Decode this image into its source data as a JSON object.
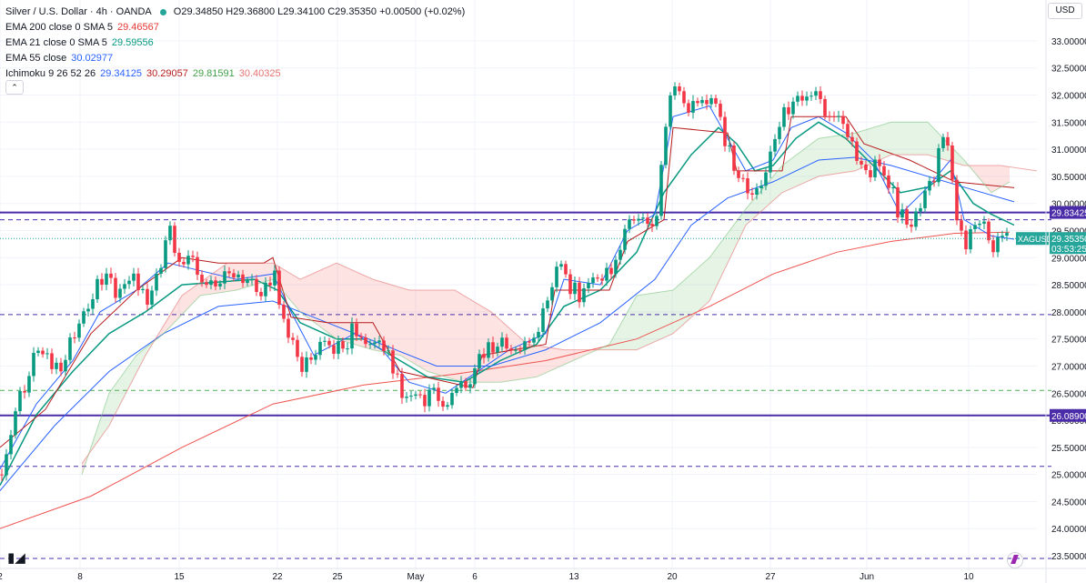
{
  "header": {
    "symbol_title": "Silver / U.S. Dollar · 4h · OANDA",
    "ohlc": "O29.34850 H29.36800 L29.34100 C29.35350 +0.00500 (+0.02%)",
    "currency": "USD",
    "indicators": [
      {
        "label": "EMA 200 close 0 SMA 5",
        "value": "29.46567",
        "color": "#e53935"
      },
      {
        "label": "EMA 21 close 0 SMA 5",
        "value": "29.59556",
        "color": "#089981"
      },
      {
        "label": "EMA 55 close",
        "value": "30.02977",
        "color": "#2962ff"
      },
      {
        "label": "Ichimoku 9 26 52 26",
        "values": [
          "29.34125",
          "30.29057",
          "29.81591",
          "30.40325"
        ],
        "colors": [
          "#2962ff",
          "#b71c1c",
          "#43a047",
          "#e57373"
        ]
      }
    ]
  },
  "chart_data": {
    "type": "line",
    "ylim": [
      23.4,
      33.2
    ],
    "y_ticks": [
      "33.00000",
      "32.50000",
      "32.00000",
      "31.50000",
      "31.00000",
      "30.50000",
      "30.00000",
      "29.50000",
      "29.00000",
      "28.50000",
      "28.00000",
      "27.50000",
      "27.00000",
      "26.50000",
      "26.00000",
      "25.50000",
      "25.00000",
      "24.50000",
      "24.00000",
      "23.50000"
    ],
    "x_ticks": [
      {
        "label": "2",
        "t": 0
      },
      {
        "label": "8",
        "t": 88
      },
      {
        "label": "15",
        "t": 197
      },
      {
        "label": "22",
        "t": 305
      },
      {
        "label": "25",
        "t": 371
      },
      {
        "label": "May",
        "t": 457
      },
      {
        "label": "6",
        "t": 522
      },
      {
        "label": "13",
        "t": 631
      },
      {
        "label": "20",
        "t": 739
      },
      {
        "label": "27",
        "t": 847
      },
      {
        "label": "Jun",
        "t": 953
      },
      {
        "label": "10",
        "t": 1065
      }
    ],
    "x_range": [
      0,
      1140
    ],
    "h_levels": [
      {
        "value": 29.83425,
        "label": "29.83425",
        "style": "solid",
        "color": "#4a2ca8"
      },
      {
        "value": 26.089,
        "label": "26.08900",
        "style": "solid",
        "color": "#4a2ca8"
      },
      {
        "value": 29.7,
        "style": "dashed",
        "color": "#4a2ca8"
      },
      {
        "value": 27.95,
        "style": "dashed",
        "color": "#4a2ca8"
      },
      {
        "value": 25.15,
        "style": "dashed",
        "color": "#4a2ca8"
      },
      {
        "value": 23.45,
        "style": "dashed",
        "color": "#4a2ca8"
      },
      {
        "value": 26.55,
        "style": "dashed",
        "color": "#4caf50"
      }
    ],
    "last_price": {
      "value": 29.3535,
      "label": "29.35350",
      "timer": "03:53:25",
      "symbol": "XAGUSD",
      "color": "#26a69a"
    },
    "close_path": [
      [
        0,
        25.0
      ],
      [
        20,
        26.4
      ],
      [
        42,
        27.3
      ],
      [
        65,
        26.9
      ],
      [
        80,
        27.6
      ],
      [
        95,
        28.1
      ],
      [
        110,
        28.7
      ],
      [
        130,
        28.3
      ],
      [
        150,
        28.6
      ],
      [
        165,
        28.2
      ],
      [
        178,
        28.9
      ],
      [
        186,
        29.6
      ],
      [
        195,
        28.8
      ],
      [
        205,
        28.9
      ],
      [
        215,
        28.9
      ],
      [
        225,
        28.5
      ],
      [
        240,
        28.5
      ],
      [
        255,
        28.7
      ],
      [
        270,
        28.6
      ],
      [
        290,
        28.3
      ],
      [
        300,
        28.8
      ],
      [
        308,
        28.1
      ],
      [
        320,
        27.5
      ],
      [
        332,
        26.8
      ],
      [
        345,
        27.3
      ],
      [
        360,
        27.4
      ],
      [
        375,
        27.3
      ],
      [
        390,
        27.7
      ],
      [
        405,
        27.3
      ],
      [
        420,
        27.4
      ],
      [
        435,
        26.9
      ],
      [
        448,
        26.3
      ],
      [
        460,
        26.5
      ],
      [
        470,
        26.4
      ],
      [
        480,
        26.6
      ],
      [
        490,
        26.2
      ],
      [
        500,
        26.6
      ],
      [
        512,
        26.6
      ],
      [
        522,
        27.0
      ],
      [
        535,
        27.4
      ],
      [
        550,
        27.4
      ],
      [
        565,
        27.3
      ],
      [
        580,
        27.4
      ],
      [
        595,
        27.8
      ],
      [
        608,
        28.6
      ],
      [
        618,
        28.9
      ],
      [
        628,
        28.4
      ],
      [
        640,
        28.3
      ],
      [
        655,
        28.6
      ],
      [
        668,
        28.7
      ],
      [
        680,
        29.1
      ],
      [
        690,
        29.8
      ],
      [
        700,
        29.6
      ],
      [
        712,
        29.7
      ],
      [
        722,
        29.8
      ],
      [
        730,
        31.2
      ],
      [
        738,
        32.1
      ],
      [
        748,
        32.1
      ],
      [
        758,
        31.6
      ],
      [
        768,
        31.9
      ],
      [
        780,
        32.0
      ],
      [
        790,
        31.8
      ],
      [
        798,
        31.1
      ],
      [
        808,
        30.6
      ],
      [
        818,
        30.4
      ],
      [
        828,
        30.3
      ],
      [
        838,
        30.5
      ],
      [
        850,
        30.9
      ],
      [
        860,
        31.8
      ],
      [
        872,
        31.8
      ],
      [
        885,
        32.1
      ],
      [
        898,
        32.0
      ],
      [
        910,
        31.5
      ],
      [
        922,
        31.5
      ],
      [
        935,
        31.1
      ],
      [
        945,
        30.7
      ],
      [
        955,
        30.5
      ],
      [
        965,
        30.9
      ],
      [
        978,
        30.4
      ],
      [
        988,
        29.8
      ],
      [
        998,
        29.6
      ],
      [
        1008,
        29.9
      ],
      [
        1018,
        30.2
      ],
      [
        1028,
        30.5
      ],
      [
        1035,
        31.3
      ],
      [
        1045,
        30.8
      ],
      [
        1052,
        29.6
      ],
      [
        1060,
        29.2
      ],
      [
        1070,
        29.6
      ],
      [
        1080,
        29.6
      ],
      [
        1090,
        29.2
      ],
      [
        1100,
        29.3
      ],
      [
        1110,
        29.35
      ]
    ],
    "series": [
      {
        "name": "EMA 200",
        "color": "#ef5350",
        "points": [
          [
            0,
            24.0
          ],
          [
            100,
            24.6
          ],
          [
            200,
            25.5
          ],
          [
            300,
            26.3
          ],
          [
            400,
            26.65
          ],
          [
            500,
            26.85
          ],
          [
            600,
            27.1
          ],
          [
            700,
            27.5
          ],
          [
            780,
            28.1
          ],
          [
            850,
            28.7
          ],
          [
            920,
            29.1
          ],
          [
            980,
            29.3
          ],
          [
            1050,
            29.45
          ],
          [
            1110,
            29.47
          ]
        ]
      },
      {
        "name": "EMA 21",
        "color": "#089981",
        "points": [
          [
            0,
            24.8
          ],
          [
            40,
            26.1
          ],
          [
            80,
            26.9
          ],
          [
            120,
            27.6
          ],
          [
            160,
            28.0
          ],
          [
            200,
            28.5
          ],
          [
            240,
            28.55
          ],
          [
            280,
            28.6
          ],
          [
            305,
            28.4
          ],
          [
            330,
            27.8
          ],
          [
            370,
            27.5
          ],
          [
            400,
            27.5
          ],
          [
            430,
            27.2
          ],
          [
            470,
            26.8
          ],
          [
            510,
            26.7
          ],
          [
            550,
            27.1
          ],
          [
            590,
            27.4
          ],
          [
            620,
            28.1
          ],
          [
            660,
            28.4
          ],
          [
            700,
            29.1
          ],
          [
            730,
            30.2
          ],
          [
            760,
            30.9
          ],
          [
            790,
            31.4
          ],
          [
            810,
            31.1
          ],
          [
            830,
            30.6
          ],
          [
            850,
            30.7
          ],
          [
            875,
            31.2
          ],
          [
            900,
            31.5
          ],
          [
            930,
            31.2
          ],
          [
            960,
            30.7
          ],
          [
            990,
            30.2
          ],
          [
            1020,
            30.3
          ],
          [
            1045,
            30.6
          ],
          [
            1070,
            30.0
          ],
          [
            1090,
            29.8
          ],
          [
            1115,
            29.6
          ]
        ]
      },
      {
        "name": "EMA 55",
        "color": "#2962ff",
        "points": [
          [
            0,
            24.7
          ],
          [
            60,
            25.9
          ],
          [
            120,
            26.9
          ],
          [
            180,
            27.6
          ],
          [
            240,
            28.1
          ],
          [
            300,
            28.2
          ],
          [
            360,
            27.8
          ],
          [
            420,
            27.4
          ],
          [
            480,
            27.0
          ],
          [
            540,
            27.0
          ],
          [
            600,
            27.3
          ],
          [
            660,
            27.8
          ],
          [
            720,
            28.6
          ],
          [
            760,
            29.6
          ],
          [
            800,
            30.1
          ],
          [
            850,
            30.4
          ],
          [
            900,
            30.8
          ],
          [
            940,
            30.85
          ],
          [
            980,
            30.7
          ],
          [
            1020,
            30.5
          ],
          [
            1060,
            30.3
          ],
          [
            1115,
            30.03
          ]
        ]
      },
      {
        "name": "Ichimoku Tenkan",
        "color": "#2962ff",
        "points": [
          [
            0,
            25.1
          ],
          [
            40,
            26.3
          ],
          [
            80,
            27.1
          ],
          [
            110,
            28.0
          ],
          [
            150,
            28.4
          ],
          [
            185,
            28.9
          ],
          [
            210,
            28.8
          ],
          [
            260,
            28.6
          ],
          [
            300,
            28.7
          ],
          [
            320,
            28.0
          ],
          [
            345,
            27.2
          ],
          [
            390,
            27.6
          ],
          [
            420,
            27.3
          ],
          [
            450,
            26.7
          ],
          [
            490,
            26.5
          ],
          [
            525,
            26.9
          ],
          [
            560,
            27.3
          ],
          [
            600,
            27.6
          ],
          [
            620,
            28.6
          ],
          [
            660,
            28.5
          ],
          [
            690,
            29.5
          ],
          [
            720,
            29.8
          ],
          [
            740,
            31.6
          ],
          [
            780,
            31.8
          ],
          [
            800,
            31.2
          ],
          [
            820,
            30.6
          ],
          [
            850,
            30.8
          ],
          [
            870,
            31.4
          ],
          [
            900,
            31.6
          ],
          [
            930,
            31.3
          ],
          [
            960,
            30.8
          ],
          [
            990,
            29.8
          ],
          [
            1020,
            30.3
          ],
          [
            1045,
            30.8
          ],
          [
            1060,
            29.7
          ],
          [
            1090,
            29.4
          ],
          [
            1115,
            29.34
          ]
        ]
      },
      {
        "name": "Ichimoku Kijun",
        "color": "#b71c1c",
        "points": [
          [
            0,
            25.5
          ],
          [
            50,
            26.2
          ],
          [
            100,
            27.6
          ],
          [
            150,
            28.4
          ],
          [
            200,
            29.0
          ],
          [
            240,
            28.9
          ],
          [
            290,
            28.9
          ],
          [
            300,
            29.0
          ],
          [
            320,
            27.9
          ],
          [
            360,
            27.8
          ],
          [
            410,
            27.8
          ],
          [
            440,
            26.9
          ],
          [
            520,
            26.6
          ],
          [
            530,
            27.2
          ],
          [
            600,
            27.4
          ],
          [
            610,
            28.4
          ],
          [
            670,
            28.4
          ],
          [
            690,
            29.3
          ],
          [
            730,
            29.7
          ],
          [
            740,
            31.4
          ],
          [
            800,
            31.3
          ],
          [
            810,
            30.6
          ],
          [
            860,
            30.6
          ],
          [
            870,
            31.6
          ],
          [
            930,
            31.6
          ],
          [
            950,
            31.1
          ],
          [
            1000,
            30.8
          ],
          [
            1050,
            30.4
          ],
          [
            1115,
            30.29
          ]
        ]
      },
      {
        "name": "Ichimoku Span A",
        "color": "#81c784",
        "points": [
          [
            90,
            25.0
          ],
          [
            120,
            26.5
          ],
          [
            150,
            27.2
          ],
          [
            180,
            27.6
          ],
          [
            220,
            28.3
          ],
          [
            260,
            28.4
          ],
          [
            300,
            28.6
          ],
          [
            330,
            28.0
          ],
          [
            370,
            27.5
          ],
          [
            410,
            27.3
          ],
          [
            440,
            27.2
          ],
          [
            470,
            26.9
          ],
          [
            510,
            26.7
          ],
          [
            550,
            26.7
          ],
          [
            590,
            26.8
          ],
          [
            630,
            27.1
          ],
          [
            670,
            27.4
          ],
          [
            700,
            28.3
          ],
          [
            740,
            28.4
          ],
          [
            780,
            29.0
          ],
          [
            820,
            29.9
          ],
          [
            860,
            30.7
          ],
          [
            900,
            31.2
          ],
          [
            940,
            31.3
          ],
          [
            980,
            31.5
          ],
          [
            1020,
            31.5
          ],
          [
            1060,
            30.8
          ],
          [
            1090,
            30.2
          ],
          [
            1110,
            30.4
          ]
        ]
      },
      {
        "name": "Ichimoku Span B",
        "color": "#e57373",
        "points": [
          [
            90,
            25.2
          ],
          [
            120,
            25.9
          ],
          [
            160,
            27.2
          ],
          [
            200,
            28.3
          ],
          [
            250,
            28.9
          ],
          [
            300,
            28.9
          ],
          [
            330,
            28.6
          ],
          [
            370,
            28.9
          ],
          [
            410,
            28.6
          ],
          [
            450,
            28.4
          ],
          [
            500,
            28.4
          ],
          [
            540,
            28.0
          ],
          [
            580,
            27.4
          ],
          [
            620,
            27.3
          ],
          [
            660,
            27.3
          ],
          [
            700,
            27.3
          ],
          [
            740,
            27.6
          ],
          [
            780,
            28.2
          ],
          [
            820,
            29.6
          ],
          [
            860,
            30.2
          ],
          [
            900,
            30.5
          ],
          [
            940,
            30.6
          ],
          [
            980,
            30.9
          ],
          [
            1020,
            30.9
          ],
          [
            1060,
            30.7
          ],
          [
            1100,
            30.7
          ],
          [
            1140,
            30.6
          ]
        ]
      }
    ]
  }
}
